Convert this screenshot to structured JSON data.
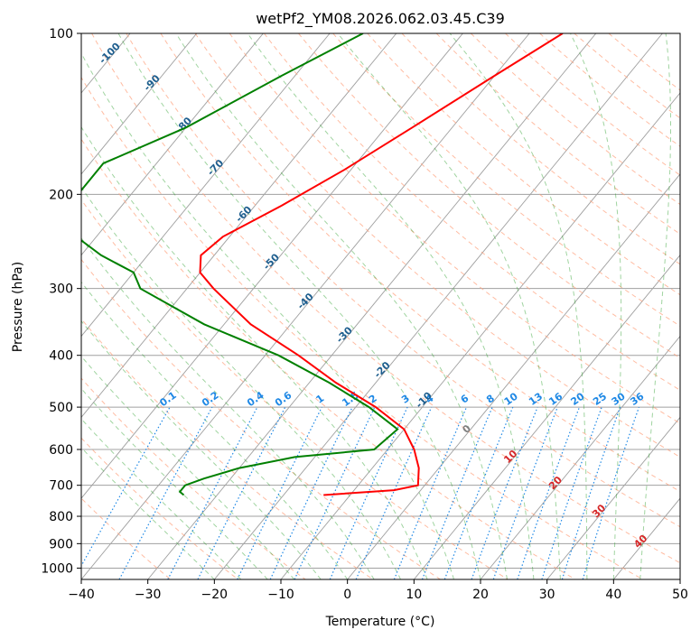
{
  "chart_data": {
    "type": "skew-t",
    "title": "wetPf2_YM08.2026.062.03.45.C39",
    "xlabel": "Temperature (°C)",
    "ylabel": "Pressure (hPa)",
    "xlim": [
      -40,
      50
    ],
    "ylim_hpa": [
      1050,
      100
    ],
    "x_ticks": [
      "−40",
      "−30",
      "−20",
      "−10",
      "0",
      "10",
      "20",
      "30",
      "40",
      "50"
    ],
    "y_ticks": [
      "100",
      "200",
      "300",
      "400",
      "500",
      "600",
      "700",
      "800",
      "900",
      "1000"
    ],
    "dry_adiabat_labels": [
      "-100",
      "-90",
      "-80",
      "-70",
      "-60",
      "-50",
      "-40",
      "-30",
      "-20",
      "-10",
      "0",
      "10",
      "20",
      "30",
      "40"
    ],
    "mixing_ratio_labels": [
      "0.1",
      "0.2",
      "0.4",
      "0.6",
      "1",
      "1.5",
      "2",
      "3",
      "4",
      "6",
      "8",
      "10",
      "13",
      "16",
      "20",
      "25",
      "30",
      "36"
    ],
    "temperature": [
      {
        "p": 100,
        "t": -35
      },
      {
        "p": 120,
        "t": -40
      },
      {
        "p": 150,
        "t": -46
      },
      {
        "p": 180,
        "t": -51
      },
      {
        "p": 210,
        "t": -56
      },
      {
        "p": 240,
        "t": -61
      },
      {
        "p": 260,
        "t": -62
      },
      {
        "p": 280,
        "t": -60
      },
      {
        "p": 300,
        "t": -56
      },
      {
        "p": 350,
        "t": -46
      },
      {
        "p": 400,
        "t": -35
      },
      {
        "p": 450,
        "t": -26
      },
      {
        "p": 500,
        "t": -17
      },
      {
        "p": 550,
        "t": -10
      },
      {
        "p": 600,
        "t": -6
      },
      {
        "p": 650,
        "t": -3
      },
      {
        "p": 700,
        "t": -1
      },
      {
        "p": 715,
        "t": -4
      },
      {
        "p": 730,
        "t": -14
      }
    ],
    "dewpoint": [
      {
        "p": 100,
        "t": -65
      },
      {
        "p": 120,
        "t": -72
      },
      {
        "p": 150,
        "t": -80
      },
      {
        "p": 175,
        "t": -88
      },
      {
        "p": 200,
        "t": -88
      },
      {
        "p": 220,
        "t": -86
      },
      {
        "p": 240,
        "t": -83
      },
      {
        "p": 260,
        "t": -77
      },
      {
        "p": 280,
        "t": -70
      },
      {
        "p": 300,
        "t": -67
      },
      {
        "p": 350,
        "t": -53
      },
      {
        "p": 400,
        "t": -38
      },
      {
        "p": 450,
        "t": -27
      },
      {
        "p": 500,
        "t": -18
      },
      {
        "p": 550,
        "t": -11
      },
      {
        "p": 600,
        "t": -12
      },
      {
        "p": 620,
        "t": -23
      },
      {
        "p": 650,
        "t": -30
      },
      {
        "p": 680,
        "t": -34
      },
      {
        "p": 700,
        "t": -36
      },
      {
        "p": 720,
        "t": -36
      },
      {
        "p": 730,
        "t": -35
      }
    ],
    "colors": {
      "temperature": "#ff0000",
      "dewpoint": "#008000",
      "dry_adiabats": "#ffa07a",
      "moist_adiabats": "#2ca02c",
      "mixing_ratio": "#1e88e5",
      "isotherms": "#a0a0a0",
      "adiabat_labels": "#1f5f8f",
      "warm_labels": "#d62728"
    },
    "grid": true
  }
}
